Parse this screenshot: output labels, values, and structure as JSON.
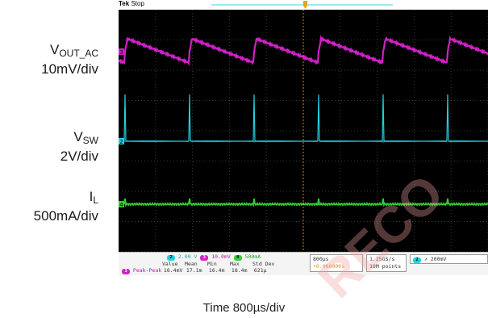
{
  "header": {
    "tek": "Tek",
    "state": "Stop"
  },
  "labels": {
    "vout": {
      "main": "V",
      "sub": "OUT_AC",
      "scale": "10mV/div"
    },
    "vsw": {
      "main": "V",
      "sub": "SW",
      "scale": "2V/div"
    },
    "il": {
      "main": "I",
      "sub": "L",
      "scale": "500mA/div"
    },
    "time": "Time 800µs/div"
  },
  "channels": {
    "ch3": {
      "marker": "3",
      "scale": "10.0mV",
      "color": "#d020c8"
    },
    "ch2": {
      "marker": "2",
      "scale": "2.00 V",
      "color": "#20d0e0"
    },
    "ch4": {
      "marker": "4",
      "scale": "500mA",
      "color": "#30d030"
    }
  },
  "acquisition": {
    "timebase": "800µs",
    "offset": "+0.000000s",
    "rate": "1.25GS/s",
    "points": "10M points",
    "trigger_ch": "2",
    "trigger_level": "200mV"
  },
  "measure": {
    "channel": "3",
    "name": "Peak-Peak",
    "headers": [
      "Value",
      "Mean",
      "Min",
      "Max",
      "Std Dev"
    ],
    "values": [
      "16.4mV",
      "17.1m",
      "16.4m",
      "18.4m",
      "621µ"
    ]
  },
  "watermark": "RECO"
}
